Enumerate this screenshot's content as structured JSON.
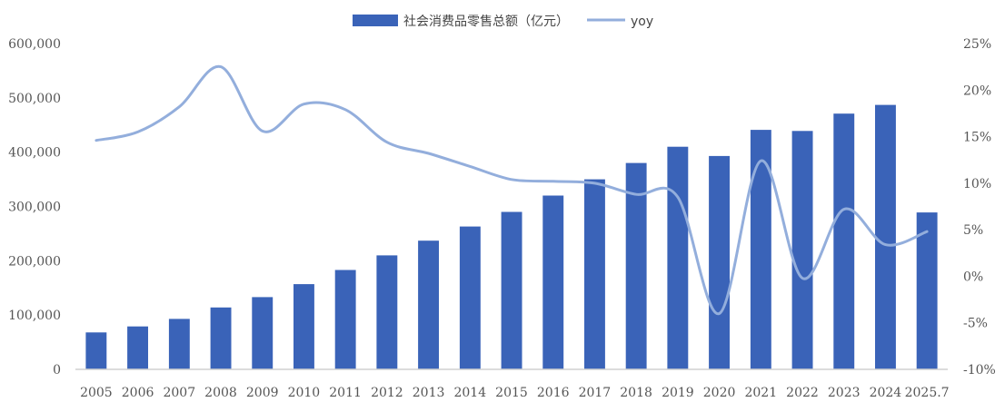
{
  "chart_data": {
    "type": "bar",
    "categories": [
      "2005",
      "2006",
      "2007",
      "2008",
      "2009",
      "2010",
      "2011",
      "2012",
      "2013",
      "2014",
      "2015",
      "2016",
      "2017",
      "2018",
      "2019",
      "2020",
      "2021",
      "2022",
      "2023",
      "2024",
      "2025.7"
    ],
    "series": [
      {
        "name": "社会消费品零售总额（亿元）",
        "type": "bar",
        "axis": "left",
        "values": [
          68000,
          79000,
          93000,
          114000,
          133000,
          157000,
          183000,
          210000,
          237000,
          263000,
          290000,
          320000,
          350000,
          380000,
          410000,
          393000,
          441000,
          439000,
          471000,
          487000,
          289000
        ]
      },
      {
        "name": "yoy",
        "type": "line",
        "axis": "right",
        "values": [
          14.6,
          15.5,
          18.2,
          22.5,
          15.6,
          18.5,
          17.9,
          14.4,
          13.2,
          11.8,
          10.4,
          10.2,
          10.0,
          8.8,
          8.5,
          -4.0,
          12.4,
          -0.2,
          7.2,
          3.4,
          4.8
        ]
      }
    ],
    "y_left": {
      "ylim": [
        0,
        600000
      ],
      "ticks": [
        "0",
        "100,000",
        "200,000",
        "300,000",
        "400,000",
        "500,000",
        "600,000"
      ]
    },
    "y_right": {
      "ylim": [
        -10,
        25
      ],
      "ticks": [
        "-10%",
        "-5%",
        "0%",
        "5%",
        "10%",
        "15%",
        "20%",
        "25%"
      ]
    },
    "grid": false,
    "legend_position": "top-center",
    "colors": {
      "bar": "#3a63b8",
      "line": "#93aedc"
    }
  }
}
